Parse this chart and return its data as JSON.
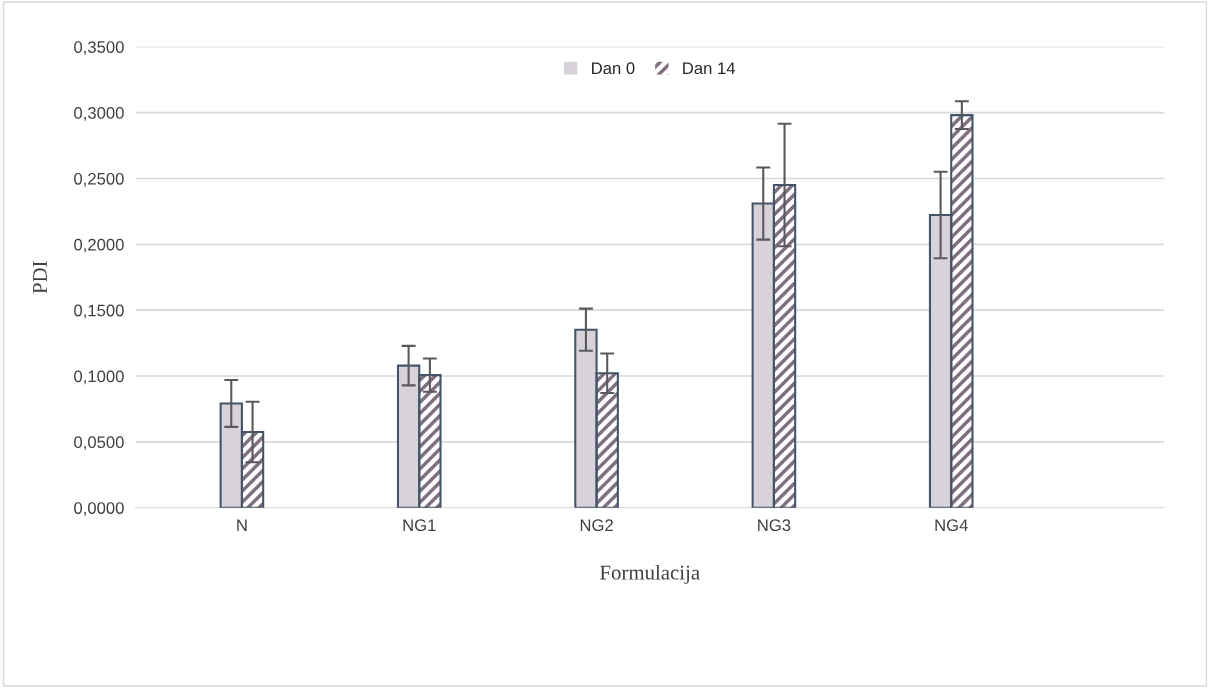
{
  "chart_data": {
    "type": "bar",
    "xlabel": "Formulacija",
    "ylabel": "PDI",
    "categories": [
      "N",
      "NG1",
      "NG2",
      "NG3",
      "NG4"
    ],
    "series": [
      {
        "name": "Dan 0",
        "color": "#d8d3da",
        "values": [
          0.0792,
          0.1079,
          0.1352,
          0.231,
          0.2223
        ],
        "errors": [
          0.0178,
          0.015,
          0.016,
          0.0274,
          0.0328
        ]
      },
      {
        "name": "Dan 14",
        "color": "#7f6f7f",
        "values": [
          0.0575,
          0.1007,
          0.1021,
          0.2451,
          0.2981
        ],
        "errors": [
          0.023,
          0.0126,
          0.015,
          0.0465,
          0.0105
        ]
      }
    ],
    "ylim": [
      0,
      0.35
    ],
    "yticks": [
      {
        "value": 0,
        "label": "0,0000"
      },
      {
        "value": 0.05,
        "label": "0,0500"
      },
      {
        "value": 0.1,
        "label": "0,1000"
      },
      {
        "value": 0.15,
        "label": "0,1500"
      },
      {
        "value": 0.2,
        "label": "0,2000"
      },
      {
        "value": 0.25,
        "label": "0,2500"
      },
      {
        "value": 0.3,
        "label": "0,3000"
      },
      {
        "value": 0.35,
        "label": "0,3500"
      }
    ],
    "grid": "y",
    "legend": "top"
  }
}
